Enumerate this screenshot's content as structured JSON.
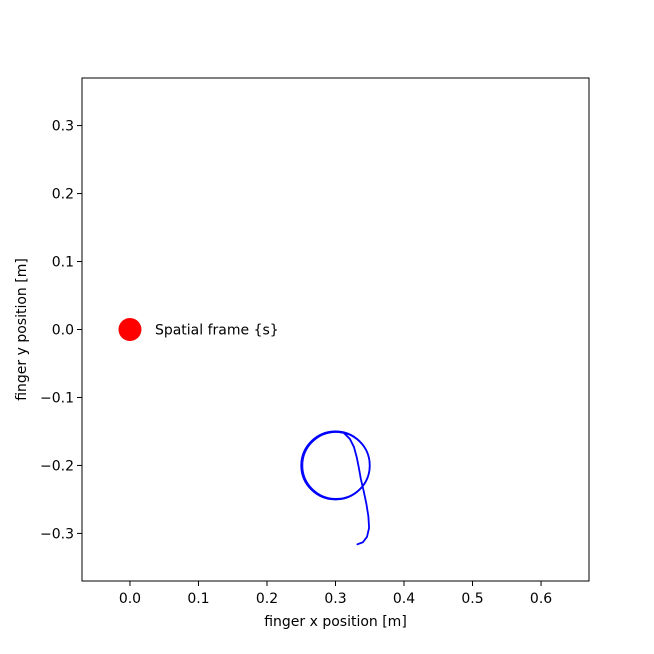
{
  "chart_data": {
    "type": "line",
    "title": "",
    "xlabel": "finger x position [m]",
    "ylabel": "finger y position [m]",
    "xlim": [
      -0.07,
      0.67
    ],
    "ylim": [
      -0.37,
      0.37
    ],
    "xticks": [
      0.0,
      0.1,
      0.2,
      0.3,
      0.4,
      0.5,
      0.6
    ],
    "yticks": [
      -0.3,
      -0.2,
      -0.1,
      0.0,
      0.1,
      0.2,
      0.3
    ],
    "xtick_labels": [
      "0.0",
      "0.1",
      "0.2",
      "0.3",
      "0.4",
      "0.5",
      "0.6"
    ],
    "ytick_labels": [
      "−0.3",
      "−0.2",
      "−0.1",
      "0.0",
      "0.1",
      "0.2",
      "0.3"
    ],
    "grid": false,
    "series": [
      {
        "color": "#0000ff",
        "approach_path": [
          [
            0.332,
            -0.316
          ],
          [
            0.34,
            -0.313
          ],
          [
            0.346,
            -0.305
          ],
          [
            0.349,
            -0.292
          ],
          [
            0.348,
            -0.275
          ],
          [
            0.345,
            -0.256
          ],
          [
            0.341,
            -0.237
          ],
          [
            0.337,
            -0.22
          ],
          [
            0.334,
            -0.203
          ],
          [
            0.331,
            -0.188
          ],
          [
            0.327,
            -0.173
          ],
          [
            0.321,
            -0.161
          ],
          [
            0.312,
            -0.152
          ],
          [
            0.3,
            -0.15
          ]
        ],
        "circle": {
          "center": [
            0.3,
            -0.2
          ],
          "radius": 0.05
        }
      }
    ],
    "markers": [
      {
        "name": "spatial-frame",
        "x": 0.0,
        "y": 0.0,
        "color": "#ff0000",
        "label": "Spatial frame {s}"
      }
    ]
  }
}
